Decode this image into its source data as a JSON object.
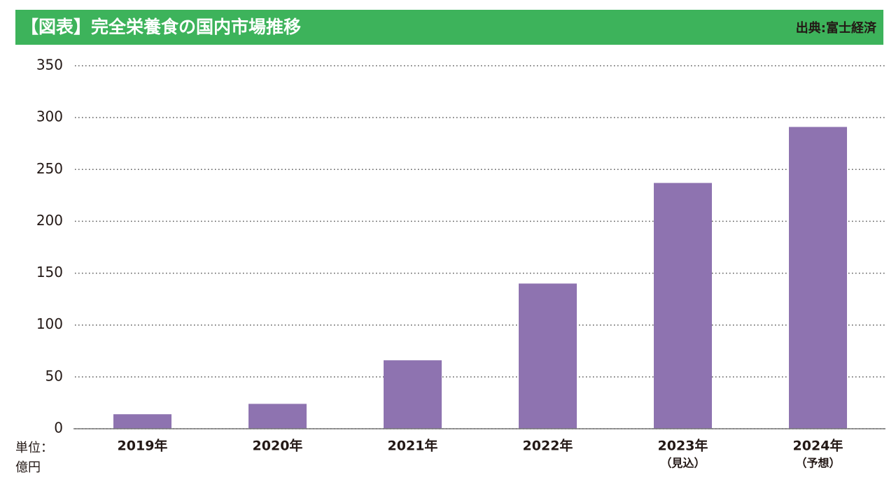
{
  "chart_data": {
    "type": "bar",
    "title": "【図表】完全栄養食の国内市場推移",
    "source": "出典:富士経済",
    "unit_label": [
      "単位：",
      "億円"
    ],
    "categories": [
      "2019年",
      "2020年",
      "2021年",
      "2022年",
      "2023年",
      "2024年"
    ],
    "category_notes": [
      null,
      null,
      null,
      null,
      "（見込）",
      "（予想）"
    ],
    "values": [
      14,
      24,
      66,
      140,
      237,
      291
    ],
    "color": "#8e73b0",
    "header_color": "#3db35b",
    "ylim": [
      0,
      350
    ],
    "yticks": [
      0,
      50,
      100,
      150,
      200,
      250,
      300,
      350
    ],
    "grid": true
  }
}
